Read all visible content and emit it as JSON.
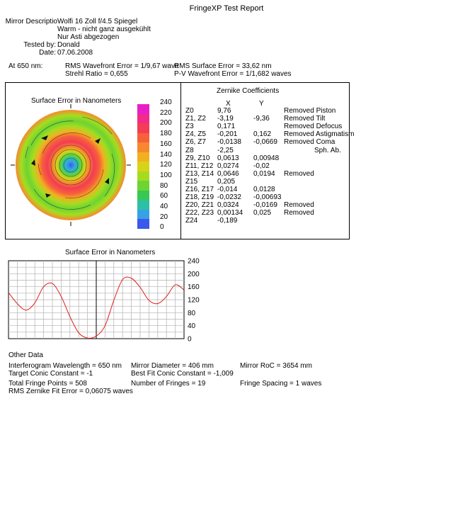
{
  "report": {
    "title": "FringeXP Test Report"
  },
  "header": {
    "mirror_label": "Mirror Descriptio",
    "mirror_lines": [
      "Wolfi 16 Zoll f/4.5 Spiegel",
      "Warm - nicht ganz ausgekühlt",
      "Nur Asti abgezogen"
    ],
    "tested_label": "Tested by:",
    "tested_value": "Donald",
    "date_label": "Date:",
    "date_value": "07.06.2008"
  },
  "summary": {
    "at_label": "At 650 nm:",
    "rms_wavefront": "RMS Wavefront Error = 1/9,67 wave",
    "rms_surface": "RMS Surface Error = 33,62 nm",
    "strehl": "Strehl Ratio = 0,655",
    "pv_wavefront": "P-V Wavefront Error = 1/1,682 waves"
  },
  "surface_map": {
    "title": "Surface Error in Nanometers",
    "colorbar_labels": [
      "240",
      "220",
      "200",
      "180",
      "160",
      "140",
      "120",
      "100",
      "80",
      "60",
      "40",
      "20",
      "0"
    ],
    "colorbar_colors": [
      "#e81fc8",
      "#f22a8a",
      "#f43c55",
      "#f6603a",
      "#f8882e",
      "#f2b021",
      "#d8d318",
      "#a6dc20",
      "#6cd433",
      "#38c853",
      "#2cc0a4",
      "#38a0e6",
      "#3a58ec"
    ]
  },
  "zernike": {
    "title": "Zernike Coefficients",
    "col_x": "X",
    "col_y": "Y",
    "rows": [
      {
        "name": "Z0",
        "x": "9,76",
        "y": "",
        "status": "Removed Piston"
      },
      {
        "name": "Z1, Z2",
        "x": "-3,19",
        "y": "-9,36",
        "status": "Removed Tilt"
      },
      {
        "name": "Z3",
        "x": "0,171",
        "y": "",
        "status": "Removed Defocus"
      },
      {
        "name": "Z4, Z5",
        "x": "-0,201",
        "y": "0,162",
        "status": "Removed Astigmatism"
      },
      {
        "name": "Z6, Z7",
        "x": "-0,0138",
        "y": "-0,0669",
        "status": "Removed Coma"
      },
      {
        "name": "Z8",
        "x": "-2,25",
        "y": "",
        "status": "Sph. Ab."
      },
      {
        "name": "Z9, Z10",
        "x": "0,0613",
        "y": "0,00948",
        "status": ""
      },
      {
        "name": "Z11, Z12",
        "x": "0,0274",
        "y": "-0,02",
        "status": ""
      },
      {
        "name": "Z13, Z14",
        "x": "0,0646",
        "y": "0,0194",
        "status": "Removed"
      },
      {
        "name": "Z15",
        "x": "0,205",
        "y": "",
        "status": ""
      },
      {
        "name": "Z16, Z17",
        "x": "-0,014",
        "y": "0,0128",
        "status": ""
      },
      {
        "name": "Z18, Z19",
        "x": "-0,0232",
        "y": "-0,00693",
        "status": ""
      },
      {
        "name": "Z20, Z21",
        "x": "0,0324",
        "y": "-0,0169",
        "status": "Removed"
      },
      {
        "name": "Z22, Z23",
        "x": "0,00134",
        "y": "0,025",
        "status": "Removed"
      },
      {
        "name": "Z24",
        "x": "-0,189",
        "y": "",
        "status": ""
      }
    ]
  },
  "profile": {
    "title": "Surface Error in Nanometers",
    "y_ticks": [
      "240",
      "200",
      "160",
      "120",
      "80",
      "40",
      "0"
    ],
    "ylim": [
      0,
      240
    ],
    "line_color": "#e0201c"
  },
  "chart_data": {
    "type": "line",
    "title": "Surface Error in Nanometers",
    "xlabel": "",
    "ylabel": "",
    "ylim": [
      0,
      240
    ],
    "grid": true,
    "x": [
      0,
      0.05,
      0.1,
      0.15,
      0.2,
      0.25,
      0.3,
      0.35,
      0.4,
      0.45,
      0.5,
      0.55,
      0.6,
      0.65,
      0.7,
      0.75,
      0.8,
      0.85,
      0.9,
      0.95,
      1.0
    ],
    "series": [
      {
        "values": [
          142,
          108,
          88,
          110,
          160,
          170,
          130,
          68,
          18,
          2,
          8,
          40,
          118,
          182,
          186,
          158,
          118,
          108,
          130,
          166,
          150
        ]
      }
    ]
  },
  "other": {
    "heading": "Other Data",
    "items": [
      "Interferogram Wavelength = 650 nm",
      "Target Conic Constant = -1",
      "Total Fringe Points = 508",
      "RMS Zernike Fit Error = 0,06075 waves",
      "Mirror Diameter = 406 mm",
      "Best Fit Conic Constant = -1,009",
      "Number of Fringes = 19",
      "Mirror RoC = 3654 mm",
      "Fringe Spacing = 1 waves"
    ]
  }
}
